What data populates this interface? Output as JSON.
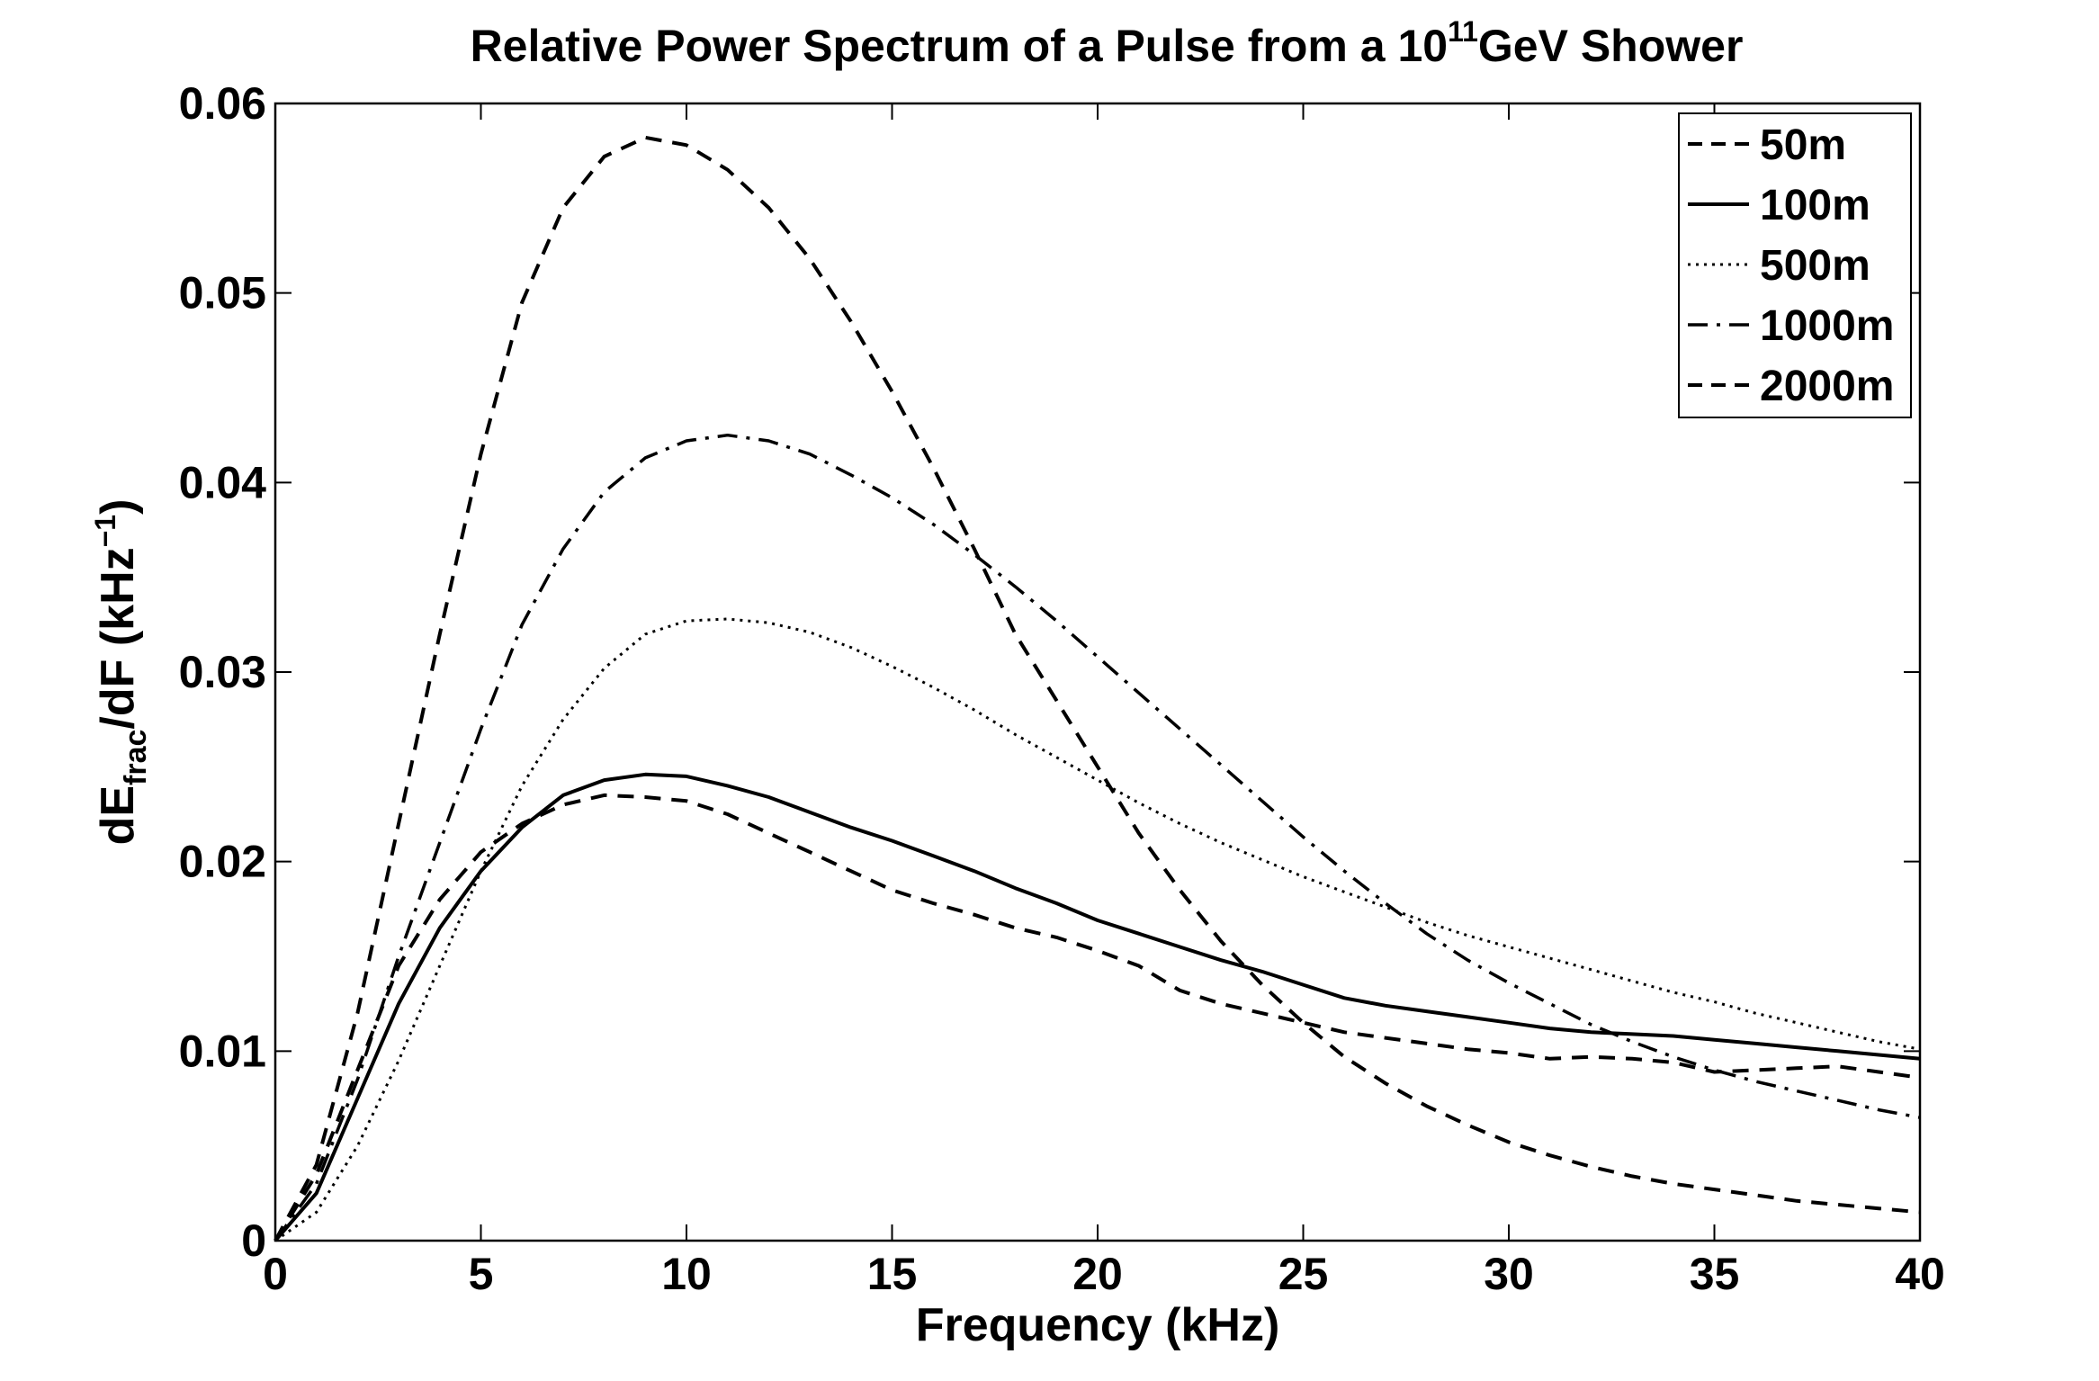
{
  "chart_data": {
    "type": "line",
    "title_main": "Relative Power Spectrum of a Pulse from a 10",
    "title_sup": "11",
    "title_tail": "GeV Shower",
    "xlabel": "Frequency (kHz)",
    "ylabel_a": "dE",
    "ylabel_sub": "frac",
    "ylabel_b": "/dF (kHz",
    "ylabel_sup": "−1",
    "ylabel_c": ")",
    "xlim": [
      0,
      40
    ],
    "ylim": [
      0,
      0.06
    ],
    "xticks": [
      0,
      5,
      10,
      15,
      20,
      25,
      30,
      35,
      40
    ],
    "yticks": [
      0,
      0.01,
      0.02,
      0.03,
      0.04,
      0.05,
      0.06
    ],
    "xtick_labels": [
      "0",
      "5",
      "10",
      "15",
      "20",
      "25",
      "30",
      "35",
      "40"
    ],
    "ytick_labels": [
      "0",
      "0.01",
      "0.02",
      "0.03",
      "0.04",
      "0.05",
      "0.06"
    ],
    "grid": false,
    "legend_position": "top-right",
    "series": [
      {
        "name": "50m",
        "style": "dashed",
        "x": [
          0,
          1,
          2,
          3,
          4,
          5,
          6,
          7,
          8,
          9,
          10,
          11,
          12,
          13,
          14,
          15,
          16,
          17,
          18,
          19,
          20,
          21,
          22,
          23,
          24,
          25,
          26,
          27,
          28,
          29,
          30,
          31,
          32,
          33,
          34,
          35,
          36,
          37,
          38,
          39,
          40
        ],
        "y": [
          0,
          0.0035,
          0.009,
          0.0145,
          0.018,
          0.0205,
          0.022,
          0.023,
          0.0235,
          0.0234,
          0.0232,
          0.0225,
          0.0215,
          0.0205,
          0.0195,
          0.0185,
          0.0178,
          0.0172,
          0.0165,
          0.016,
          0.0153,
          0.0145,
          0.0132,
          0.0125,
          0.012,
          0.0115,
          0.011,
          0.0107,
          0.0104,
          0.0101,
          0.0099,
          0.0096,
          0.0097,
          0.0096,
          0.0094,
          0.0089,
          0.009,
          0.0091,
          0.0092,
          0.0089,
          0.0086
        ]
      },
      {
        "name": "100m",
        "style": "solid",
        "x": [
          0,
          1,
          2,
          3,
          4,
          5,
          6,
          7,
          8,
          9,
          10,
          11,
          12,
          13,
          14,
          15,
          16,
          17,
          18,
          19,
          20,
          21,
          22,
          23,
          24,
          25,
          26,
          27,
          28,
          29,
          30,
          31,
          32,
          33,
          34,
          35,
          36,
          37,
          38,
          39,
          40
        ],
        "y": [
          0,
          0.0025,
          0.0075,
          0.0125,
          0.0165,
          0.0195,
          0.0218,
          0.0235,
          0.0243,
          0.0246,
          0.0245,
          0.024,
          0.0234,
          0.0226,
          0.0218,
          0.0211,
          0.0203,
          0.0195,
          0.0186,
          0.0178,
          0.0169,
          0.0162,
          0.0155,
          0.0148,
          0.0142,
          0.0135,
          0.0128,
          0.0124,
          0.0121,
          0.0118,
          0.0115,
          0.0112,
          0.011,
          0.0109,
          0.0108,
          0.0106,
          0.0104,
          0.0102,
          0.01,
          0.0098,
          0.0096
        ]
      },
      {
        "name": "500m",
        "style": "dotted",
        "x": [
          0,
          1,
          2,
          3,
          4,
          5,
          6,
          7,
          8,
          9,
          10,
          11,
          12,
          13,
          14,
          15,
          16,
          17,
          18,
          19,
          20,
          21,
          22,
          23,
          24,
          25,
          26,
          27,
          28,
          29,
          30,
          31,
          32,
          33,
          34,
          35,
          36,
          37,
          38,
          39,
          40
        ],
        "y": [
          0,
          0.0015,
          0.005,
          0.0095,
          0.0145,
          0.0195,
          0.024,
          0.0275,
          0.0302,
          0.032,
          0.0327,
          0.0328,
          0.0326,
          0.0321,
          0.0313,
          0.0303,
          0.0292,
          0.028,
          0.0267,
          0.0255,
          0.0243,
          0.0231,
          0.022,
          0.021,
          0.0201,
          0.0192,
          0.0184,
          0.0176,
          0.0168,
          0.0161,
          0.0155,
          0.0149,
          0.0143,
          0.0137,
          0.0131,
          0.0126,
          0.012,
          0.0115,
          0.011,
          0.0105,
          0.0101
        ]
      },
      {
        "name": "1000m",
        "style": "dashdot",
        "x": [
          0,
          1,
          2,
          3,
          4,
          5,
          6,
          7,
          8,
          9,
          10,
          11,
          12,
          13,
          14,
          15,
          16,
          17,
          18,
          19,
          20,
          21,
          22,
          23,
          24,
          25,
          26,
          27,
          28,
          29,
          30,
          31,
          32,
          33,
          34,
          35,
          36,
          37,
          38,
          39,
          40
        ],
        "y": [
          0,
          0.003,
          0.0085,
          0.015,
          0.021,
          0.027,
          0.0325,
          0.0365,
          0.0395,
          0.0413,
          0.0422,
          0.0425,
          0.0422,
          0.0415,
          0.0404,
          0.0392,
          0.0378,
          0.0362,
          0.0345,
          0.0327,
          0.0308,
          0.0289,
          0.027,
          0.0251,
          0.0232,
          0.0213,
          0.0195,
          0.0178,
          0.0162,
          0.0148,
          0.0136,
          0.0125,
          0.0114,
          0.0105,
          0.0097,
          0.009,
          0.0084,
          0.0079,
          0.0074,
          0.0069,
          0.0065
        ]
      },
      {
        "name": "2000m",
        "style": "dashed",
        "x": [
          0,
          1,
          2,
          3,
          4,
          5,
          6,
          7,
          8,
          9,
          10,
          11,
          12,
          13,
          14,
          15,
          16,
          17,
          18,
          19,
          20,
          21,
          22,
          23,
          24,
          25,
          26,
          27,
          28,
          29,
          30,
          31,
          32,
          33,
          34,
          35,
          36,
          37,
          38,
          39,
          40
        ],
        "y": [
          0,
          0.004,
          0.012,
          0.022,
          0.032,
          0.0415,
          0.0495,
          0.0545,
          0.0572,
          0.0582,
          0.0578,
          0.0565,
          0.0545,
          0.0518,
          0.0485,
          0.0448,
          0.0408,
          0.0365,
          0.032,
          0.0285,
          0.025,
          0.0215,
          0.0185,
          0.0158,
          0.0135,
          0.0115,
          0.0097,
          0.0083,
          0.0071,
          0.0061,
          0.0052,
          0.0045,
          0.0039,
          0.0034,
          0.003,
          0.0027,
          0.0024,
          0.0021,
          0.0019,
          0.0017,
          0.0015
        ]
      }
    ]
  }
}
